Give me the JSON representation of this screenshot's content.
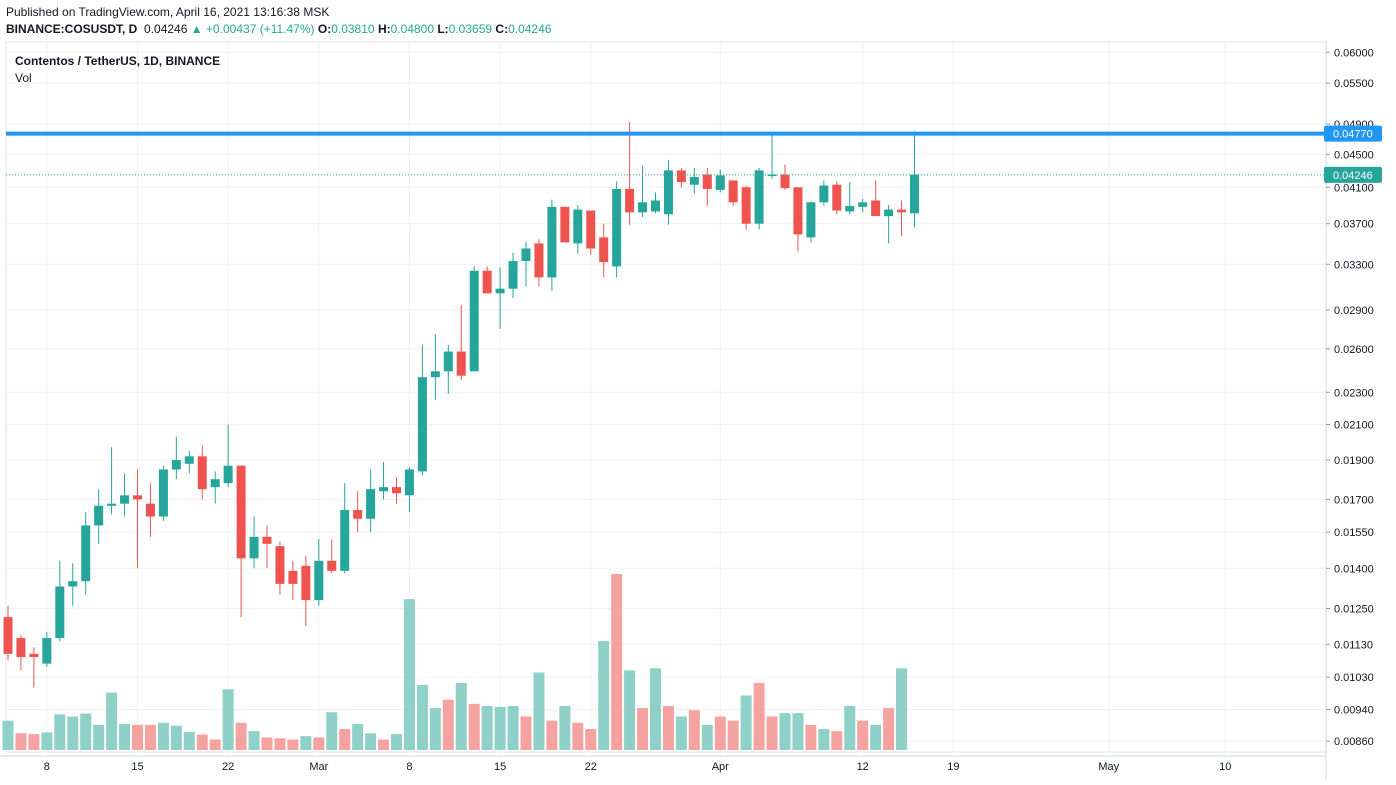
{
  "header": {
    "published": "Published on TradingView.com, April 16, 2021 13:16:38 MSK",
    "symbol": "BINANCE:COSUSDT, D",
    "last": "0.04246",
    "change": "+0.00437 (+11.47%)",
    "o_label": "O:",
    "o": "0.03810",
    "h_label": "H:",
    "h": "0.04800",
    "l_label": "L:",
    "l": "0.03659",
    "c_label": "C:",
    "c": "0.04246"
  },
  "legend": {
    "title": "Contentos / TetherUS, 1D, BINANCE",
    "sub": "Vol"
  },
  "colors": {
    "up": "#26a69a",
    "down": "#ef5350",
    "vol_up": "#8fd0c8",
    "vol_down": "#f5a3a1",
    "hline": "#2196f3",
    "grid": "#eef0f3"
  },
  "chart_data": {
    "type": "candlestick",
    "price_scale": "log",
    "ylim": [
      0.0082,
      0.0615
    ],
    "y_ticks": [
      "0.06000",
      "0.05500",
      "0.04900",
      "0.04500",
      "0.04100",
      "0.03700",
      "0.03300",
      "0.02900",
      "0.02600",
      "0.02300",
      "0.02100",
      "0.01900",
      "0.01700",
      "0.01550",
      "0.01400",
      "0.01250",
      "0.01130",
      "0.01030",
      "0.00940",
      "0.00860"
    ],
    "x_ticks": [
      {
        "label": "8",
        "index": 3
      },
      {
        "label": "15",
        "index": 10
      },
      {
        "label": "22",
        "index": 17
      },
      {
        "label": "Mar",
        "index": 24
      },
      {
        "label": "8",
        "index": 31
      },
      {
        "label": "15",
        "index": 38
      },
      {
        "label": "22",
        "index": 45
      },
      {
        "label": "Apr",
        "index": 55
      },
      {
        "label": "12",
        "index": 66
      },
      {
        "label": "19",
        "index": 73
      },
      {
        "label": "May",
        "index": 85
      },
      {
        "label": "10",
        "index": 94
      }
    ],
    "horizontal_line": {
      "value": 0.0477,
      "label": "0.04770"
    },
    "last_price": {
      "value": 0.04246,
      "label": "0.04246"
    },
    "volume_scale": [
      0,
      4.2
    ],
    "candles": [
      {
        "o": 0.0122,
        "h": 0.0126,
        "l": 0.0108,
        "c": 0.011
      },
      {
        "o": 0.0115,
        "h": 0.0116,
        "l": 0.0105,
        "c": 0.0109
      },
      {
        "o": 0.011,
        "h": 0.0112,
        "l": 0.01,
        "c": 0.0109
      },
      {
        "o": 0.0107,
        "h": 0.0117,
        "l": 0.0106,
        "c": 0.0115
      },
      {
        "o": 0.0115,
        "h": 0.0143,
        "l": 0.0114,
        "c": 0.0133
      },
      {
        "o": 0.0133,
        "h": 0.0142,
        "l": 0.0126,
        "c": 0.0135
      },
      {
        "o": 0.0135,
        "h": 0.0164,
        "l": 0.013,
        "c": 0.0158
      },
      {
        "o": 0.0158,
        "h": 0.0175,
        "l": 0.015,
        "c": 0.0167
      },
      {
        "o": 0.0167,
        "h": 0.0197,
        "l": 0.0163,
        "c": 0.0168
      },
      {
        "o": 0.0168,
        "h": 0.0183,
        "l": 0.0162,
        "c": 0.0172
      },
      {
        "o": 0.0172,
        "h": 0.0185,
        "l": 0.014,
        "c": 0.017
      },
      {
        "o": 0.0168,
        "h": 0.0178,
        "l": 0.0153,
        "c": 0.0162
      },
      {
        "o": 0.0162,
        "h": 0.0187,
        "l": 0.016,
        "c": 0.0185
      },
      {
        "o": 0.0185,
        "h": 0.0203,
        "l": 0.018,
        "c": 0.019
      },
      {
        "o": 0.0188,
        "h": 0.0195,
        "l": 0.0183,
        "c": 0.0192
      },
      {
        "o": 0.0192,
        "h": 0.0198,
        "l": 0.017,
        "c": 0.0175
      },
      {
        "o": 0.0176,
        "h": 0.0184,
        "l": 0.0168,
        "c": 0.018
      },
      {
        "o": 0.0178,
        "h": 0.021,
        "l": 0.0176,
        "c": 0.0187
      },
      {
        "o": 0.0187,
        "h": 0.0187,
        "l": 0.0122,
        "c": 0.0144
      },
      {
        "o": 0.0144,
        "h": 0.0162,
        "l": 0.014,
        "c": 0.0153
      },
      {
        "o": 0.0153,
        "h": 0.0158,
        "l": 0.014,
        "c": 0.015
      },
      {
        "o": 0.0149,
        "h": 0.0151,
        "l": 0.013,
        "c": 0.0134
      },
      {
        "o": 0.0139,
        "h": 0.0143,
        "l": 0.0128,
        "c": 0.0134
      },
      {
        "o": 0.0141,
        "h": 0.0145,
        "l": 0.0119,
        "c": 0.0128
      },
      {
        "o": 0.0128,
        "h": 0.0152,
        "l": 0.0126,
        "c": 0.0143
      },
      {
        "o": 0.0143,
        "h": 0.0152,
        "l": 0.0138,
        "c": 0.0139
      },
      {
        "o": 0.0139,
        "h": 0.0178,
        "l": 0.0138,
        "c": 0.0165
      },
      {
        "o": 0.0165,
        "h": 0.0174,
        "l": 0.0155,
        "c": 0.0161
      },
      {
        "o": 0.0161,
        "h": 0.0185,
        "l": 0.0155,
        "c": 0.0175
      },
      {
        "o": 0.0174,
        "h": 0.0189,
        "l": 0.017,
        "c": 0.0176
      },
      {
        "o": 0.0176,
        "h": 0.0181,
        "l": 0.0168,
        "c": 0.0173
      },
      {
        "o": 0.0172,
        "h": 0.0186,
        "l": 0.0164,
        "c": 0.0185
      },
      {
        "o": 0.0184,
        "h": 0.0263,
        "l": 0.0182,
        "c": 0.024
      },
      {
        "o": 0.024,
        "h": 0.0271,
        "l": 0.0225,
        "c": 0.0244
      },
      {
        "o": 0.0244,
        "h": 0.0263,
        "l": 0.0229,
        "c": 0.0258
      },
      {
        "o": 0.0258,
        "h": 0.0294,
        "l": 0.0238,
        "c": 0.0241
      },
      {
        "o": 0.0244,
        "h": 0.0328,
        "l": 0.0244,
        "c": 0.0324
      },
      {
        "o": 0.0324,
        "h": 0.0328,
        "l": 0.0305,
        "c": 0.0304
      },
      {
        "o": 0.0304,
        "h": 0.0327,
        "l": 0.0275,
        "c": 0.0308
      },
      {
        "o": 0.0308,
        "h": 0.0341,
        "l": 0.03,
        "c": 0.0333
      },
      {
        "o": 0.0333,
        "h": 0.0352,
        "l": 0.031,
        "c": 0.0345
      },
      {
        "o": 0.035,
        "h": 0.0354,
        "l": 0.031,
        "c": 0.0318
      },
      {
        "o": 0.0318,
        "h": 0.0396,
        "l": 0.0306,
        "c": 0.0388
      },
      {
        "o": 0.0388,
        "h": 0.0388,
        "l": 0.0355,
        "c": 0.0351
      },
      {
        "o": 0.035,
        "h": 0.039,
        "l": 0.034,
        "c": 0.0385
      },
      {
        "o": 0.0384,
        "h": 0.0384,
        "l": 0.0339,
        "c": 0.0345
      },
      {
        "o": 0.0356,
        "h": 0.037,
        "l": 0.0318,
        "c": 0.0332
      },
      {
        "o": 0.0328,
        "h": 0.0417,
        "l": 0.0318,
        "c": 0.0408
      },
      {
        "o": 0.0408,
        "h": 0.0493,
        "l": 0.0369,
        "c": 0.0382
      },
      {
        "o": 0.0382,
        "h": 0.0436,
        "l": 0.0377,
        "c": 0.0393
      },
      {
        "o": 0.0383,
        "h": 0.0404,
        "l": 0.0381,
        "c": 0.0395
      },
      {
        "o": 0.038,
        "h": 0.0443,
        "l": 0.0369,
        "c": 0.043
      },
      {
        "o": 0.043,
        "h": 0.0433,
        "l": 0.041,
        "c": 0.0416
      },
      {
        "o": 0.0413,
        "h": 0.0433,
        "l": 0.0403,
        "c": 0.0422
      },
      {
        "o": 0.0425,
        "h": 0.0433,
        "l": 0.0389,
        "c": 0.0408
      },
      {
        "o": 0.0407,
        "h": 0.0431,
        "l": 0.0404,
        "c": 0.0424
      },
      {
        "o": 0.0418,
        "h": 0.0418,
        "l": 0.0389,
        "c": 0.0393
      },
      {
        "o": 0.041,
        "h": 0.0412,
        "l": 0.0364,
        "c": 0.037
      },
      {
        "o": 0.037,
        "h": 0.0433,
        "l": 0.0364,
        "c": 0.043
      },
      {
        "o": 0.0425,
        "h": 0.0476,
        "l": 0.042,
        "c": 0.0425
      },
      {
        "o": 0.0425,
        "h": 0.0437,
        "l": 0.0407,
        "c": 0.0409
      },
      {
        "o": 0.041,
        "h": 0.041,
        "l": 0.0342,
        "c": 0.0359
      },
      {
        "o": 0.0356,
        "h": 0.0394,
        "l": 0.0351,
        "c": 0.0393
      },
      {
        "o": 0.0393,
        "h": 0.0418,
        "l": 0.0389,
        "c": 0.0412
      },
      {
        "o": 0.0413,
        "h": 0.0417,
        "l": 0.038,
        "c": 0.0384
      },
      {
        "o": 0.0383,
        "h": 0.0416,
        "l": 0.038,
        "c": 0.0389
      },
      {
        "o": 0.0388,
        "h": 0.0397,
        "l": 0.0382,
        "c": 0.0393
      },
      {
        "o": 0.0395,
        "h": 0.0418,
        "l": 0.038,
        "c": 0.0378
      },
      {
        "o": 0.0378,
        "h": 0.039,
        "l": 0.035,
        "c": 0.0385
      },
      {
        "o": 0.0385,
        "h": 0.0395,
        "l": 0.0357,
        "c": 0.0382
      },
      {
        "o": 0.0381,
        "h": 0.048,
        "l": 0.0366,
        "c": 0.0425
      }
    ],
    "volume": [
      {
        "v": 0.7,
        "d": "up"
      },
      {
        "v": 0.4,
        "d": "down"
      },
      {
        "v": 0.38,
        "d": "down"
      },
      {
        "v": 0.42,
        "d": "up"
      },
      {
        "v": 0.85,
        "d": "up"
      },
      {
        "v": 0.8,
        "d": "up"
      },
      {
        "v": 0.87,
        "d": "up"
      },
      {
        "v": 0.6,
        "d": "up"
      },
      {
        "v": 1.37,
        "d": "up"
      },
      {
        "v": 0.62,
        "d": "up"
      },
      {
        "v": 0.6,
        "d": "down"
      },
      {
        "v": 0.6,
        "d": "down"
      },
      {
        "v": 0.65,
        "d": "up"
      },
      {
        "v": 0.58,
        "d": "up"
      },
      {
        "v": 0.43,
        "d": "up"
      },
      {
        "v": 0.37,
        "d": "down"
      },
      {
        "v": 0.25,
        "d": "down"
      },
      {
        "v": 1.45,
        "d": "up"
      },
      {
        "v": 0.65,
        "d": "down"
      },
      {
        "v": 0.45,
        "d": "up"
      },
      {
        "v": 0.3,
        "d": "down"
      },
      {
        "v": 0.28,
        "d": "down"
      },
      {
        "v": 0.25,
        "d": "down"
      },
      {
        "v": 0.33,
        "d": "up"
      },
      {
        "v": 0.3,
        "d": "down"
      },
      {
        "v": 0.9,
        "d": "up"
      },
      {
        "v": 0.5,
        "d": "down"
      },
      {
        "v": 0.62,
        "d": "up"
      },
      {
        "v": 0.4,
        "d": "up"
      },
      {
        "v": 0.25,
        "d": "down"
      },
      {
        "v": 0.38,
        "d": "up"
      },
      {
        "v": 3.6,
        "d": "up"
      },
      {
        "v": 1.55,
        "d": "up"
      },
      {
        "v": 1.0,
        "d": "up"
      },
      {
        "v": 1.2,
        "d": "down"
      },
      {
        "v": 1.6,
        "d": "up"
      },
      {
        "v": 1.1,
        "d": "down"
      },
      {
        "v": 1.05,
        "d": "up"
      },
      {
        "v": 1.03,
        "d": "up"
      },
      {
        "v": 1.05,
        "d": "up"
      },
      {
        "v": 0.8,
        "d": "down"
      },
      {
        "v": 1.85,
        "d": "up"
      },
      {
        "v": 0.7,
        "d": "down"
      },
      {
        "v": 1.05,
        "d": "up"
      },
      {
        "v": 0.65,
        "d": "down"
      },
      {
        "v": 0.5,
        "d": "down"
      },
      {
        "v": 2.6,
        "d": "up"
      },
      {
        "v": 4.2,
        "d": "down"
      },
      {
        "v": 1.9,
        "d": "up"
      },
      {
        "v": 1.0,
        "d": "down"
      },
      {
        "v": 1.95,
        "d": "up"
      },
      {
        "v": 1.05,
        "d": "down"
      },
      {
        "v": 0.8,
        "d": "up"
      },
      {
        "v": 0.95,
        "d": "down"
      },
      {
        "v": 0.6,
        "d": "up"
      },
      {
        "v": 0.8,
        "d": "down"
      },
      {
        "v": 0.7,
        "d": "down"
      },
      {
        "v": 1.3,
        "d": "up"
      },
      {
        "v": 1.6,
        "d": "down"
      },
      {
        "v": 0.8,
        "d": "down"
      },
      {
        "v": 0.88,
        "d": "up"
      },
      {
        "v": 0.88,
        "d": "up"
      },
      {
        "v": 0.6,
        "d": "down"
      },
      {
        "v": 0.5,
        "d": "up"
      },
      {
        "v": 0.45,
        "d": "down"
      },
      {
        "v": 1.05,
        "d": "up"
      },
      {
        "v": 0.7,
        "d": "down"
      },
      {
        "v": 0.6,
        "d": "up"
      },
      {
        "v": 1.0,
        "d": "down"
      },
      {
        "v": 1.95,
        "d": "up"
      }
    ]
  }
}
